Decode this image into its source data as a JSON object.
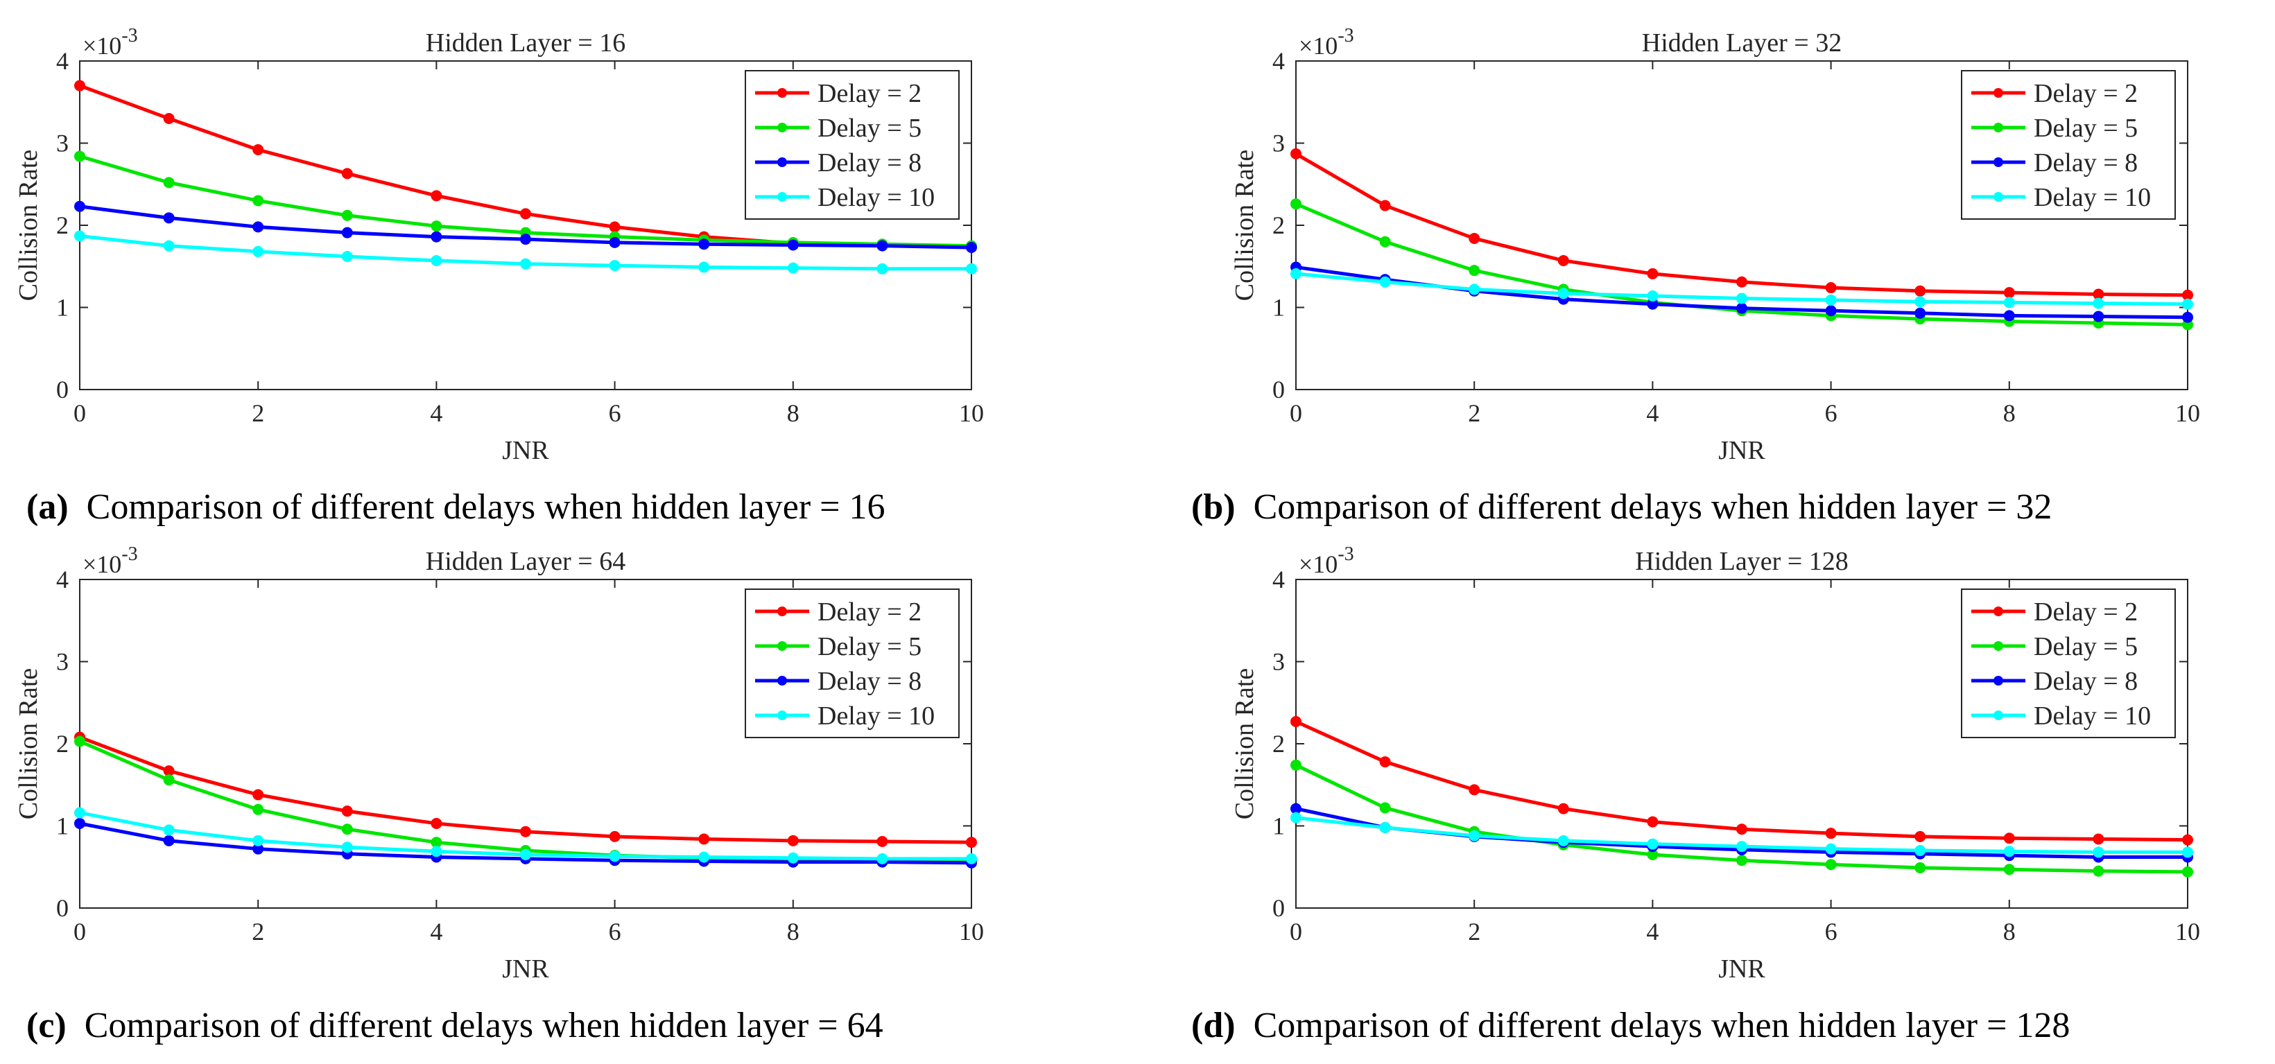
{
  "figure": {
    "panels": [
      {
        "label": "(a)",
        "caption": "Comparison of different delays when hidden layer = 16",
        "chart_data": {
          "type": "line",
          "title": "Hidden Layer =  16",
          "xlabel": "JNR",
          "ylabel": "Collision Rate",
          "y_exponent": "×10",
          "y_exponent_power": "-3",
          "xlim": [
            0,
            10
          ],
          "ylim": [
            0,
            4
          ],
          "xticks": [
            "0",
            "2",
            "4",
            "6",
            "8",
            "10"
          ],
          "yticks": [
            "0",
            "1",
            "2",
            "3",
            "4"
          ],
          "x": [
            0,
            1,
            2,
            3,
            4,
            5,
            6,
            7,
            8,
            9,
            10
          ],
          "legend_position": "top-right",
          "series": [
            {
              "name": "Delay =  2",
              "color": "#ff0000",
              "values": [
                3.7,
                3.3,
                2.92,
                2.63,
                2.36,
                2.14,
                1.98,
                1.86,
                1.78,
                1.76,
                1.74
              ]
            },
            {
              "name": "Delay =  5",
              "color": "#00e600",
              "values": [
                2.84,
                2.52,
                2.3,
                2.12,
                1.99,
                1.91,
                1.86,
                1.82,
                1.79,
                1.77,
                1.75
              ]
            },
            {
              "name": "Delay =  8",
              "color": "#0000ff",
              "values": [
                2.23,
                2.09,
                1.98,
                1.91,
                1.86,
                1.83,
                1.79,
                1.77,
                1.76,
                1.75,
                1.73
              ]
            },
            {
              "name": "Delay = 10",
              "color": "#00ffff",
              "values": [
                1.87,
                1.75,
                1.68,
                1.62,
                1.57,
                1.53,
                1.51,
                1.49,
                1.48,
                1.47,
                1.47
              ]
            }
          ]
        }
      },
      {
        "label": "(b)",
        "caption": "Comparison of different delays when hidden layer = 32",
        "chart_data": {
          "type": "line",
          "title": "Hidden Layer =  32",
          "xlabel": "JNR",
          "ylabel": "Collision Rate",
          "y_exponent": "×10",
          "y_exponent_power": "-3",
          "xlim": [
            0,
            10
          ],
          "ylim": [
            0,
            4
          ],
          "xticks": [
            "0",
            "2",
            "4",
            "6",
            "8",
            "10"
          ],
          "yticks": [
            "0",
            "1",
            "2",
            "3",
            "4"
          ],
          "x": [
            0,
            1,
            2,
            3,
            4,
            5,
            6,
            7,
            8,
            9,
            10
          ],
          "legend_position": "top-right",
          "series": [
            {
              "name": "Delay =  2",
              "color": "#ff0000",
              "values": [
                2.87,
                2.24,
                1.84,
                1.57,
                1.41,
                1.31,
                1.24,
                1.2,
                1.18,
                1.16,
                1.15
              ]
            },
            {
              "name": "Delay =  5",
              "color": "#00e600",
              "values": [
                2.26,
                1.8,
                1.45,
                1.22,
                1.06,
                0.96,
                0.9,
                0.86,
                0.83,
                0.81,
                0.79
              ]
            },
            {
              "name": "Delay =  8",
              "color": "#0000ff",
              "values": [
                1.49,
                1.34,
                1.2,
                1.1,
                1.04,
                0.99,
                0.96,
                0.93,
                0.9,
                0.89,
                0.88
              ]
            },
            {
              "name": "Delay = 10",
              "color": "#00ffff",
              "values": [
                1.41,
                1.31,
                1.22,
                1.17,
                1.14,
                1.11,
                1.09,
                1.07,
                1.06,
                1.05,
                1.04
              ]
            }
          ]
        }
      },
      {
        "label": "(c)",
        "caption": "Comparison of different delays when hidden layer = 64",
        "chart_data": {
          "type": "line",
          "title": "Hidden Layer =  64",
          "xlabel": "JNR",
          "ylabel": "Collision Rate",
          "y_exponent": "×10",
          "y_exponent_power": "-3",
          "xlim": [
            0,
            10
          ],
          "ylim": [
            0,
            4
          ],
          "xticks": [
            "0",
            "2",
            "4",
            "6",
            "8",
            "10"
          ],
          "yticks": [
            "0",
            "1",
            "2",
            "3",
            "4"
          ],
          "x": [
            0,
            1,
            2,
            3,
            4,
            5,
            6,
            7,
            8,
            9,
            10
          ],
          "legend_position": "top-right",
          "series": [
            {
              "name": "Delay =  2",
              "color": "#ff0000",
              "values": [
                2.08,
                1.67,
                1.38,
                1.18,
                1.03,
                0.93,
                0.87,
                0.84,
                0.82,
                0.81,
                0.8
              ]
            },
            {
              "name": "Delay =  5",
              "color": "#00e600",
              "values": [
                2.03,
                1.56,
                1.2,
                0.96,
                0.8,
                0.7,
                0.64,
                0.61,
                0.59,
                0.58,
                0.57
              ]
            },
            {
              "name": "Delay =  8",
              "color": "#0000ff",
              "values": [
                1.03,
                0.82,
                0.72,
                0.66,
                0.62,
                0.6,
                0.58,
                0.57,
                0.56,
                0.56,
                0.55
              ]
            },
            {
              "name": "Delay = 10",
              "color": "#00ffff",
              "values": [
                1.16,
                0.95,
                0.82,
                0.74,
                0.69,
                0.65,
                0.63,
                0.62,
                0.61,
                0.6,
                0.6
              ]
            }
          ]
        }
      },
      {
        "label": "(d)",
        "caption": "Comparison of different delays when hidden layer = 128",
        "chart_data": {
          "type": "line",
          "title": "Hidden Layer = 128",
          "xlabel": "JNR",
          "ylabel": "Collision Rate",
          "y_exponent": "×10",
          "y_exponent_power": "-3",
          "xlim": [
            0,
            10
          ],
          "ylim": [
            0,
            4
          ],
          "xticks": [
            "0",
            "2",
            "4",
            "6",
            "8",
            "10"
          ],
          "yticks": [
            "0",
            "1",
            "2",
            "3",
            "4"
          ],
          "x": [
            0,
            1,
            2,
            3,
            4,
            5,
            6,
            7,
            8,
            9,
            10
          ],
          "legend_position": "top-right",
          "series": [
            {
              "name": "Delay =  2",
              "color": "#ff0000",
              "values": [
                2.27,
                1.78,
                1.44,
                1.21,
                1.05,
                0.96,
                0.91,
                0.87,
                0.85,
                0.84,
                0.83
              ]
            },
            {
              "name": "Delay =  5",
              "color": "#00e600",
              "values": [
                1.74,
                1.22,
                0.93,
                0.77,
                0.65,
                0.58,
                0.53,
                0.49,
                0.47,
                0.45,
                0.44
              ]
            },
            {
              "name": "Delay =  8",
              "color": "#0000ff",
              "values": [
                1.21,
                0.98,
                0.87,
                0.8,
                0.75,
                0.71,
                0.68,
                0.66,
                0.64,
                0.62,
                0.62
              ]
            },
            {
              "name": "Delay = 10",
              "color": "#00ffff",
              "values": [
                1.1,
                0.98,
                0.88,
                0.82,
                0.78,
                0.75,
                0.72,
                0.7,
                0.69,
                0.68,
                0.68
              ]
            }
          ]
        }
      }
    ]
  }
}
